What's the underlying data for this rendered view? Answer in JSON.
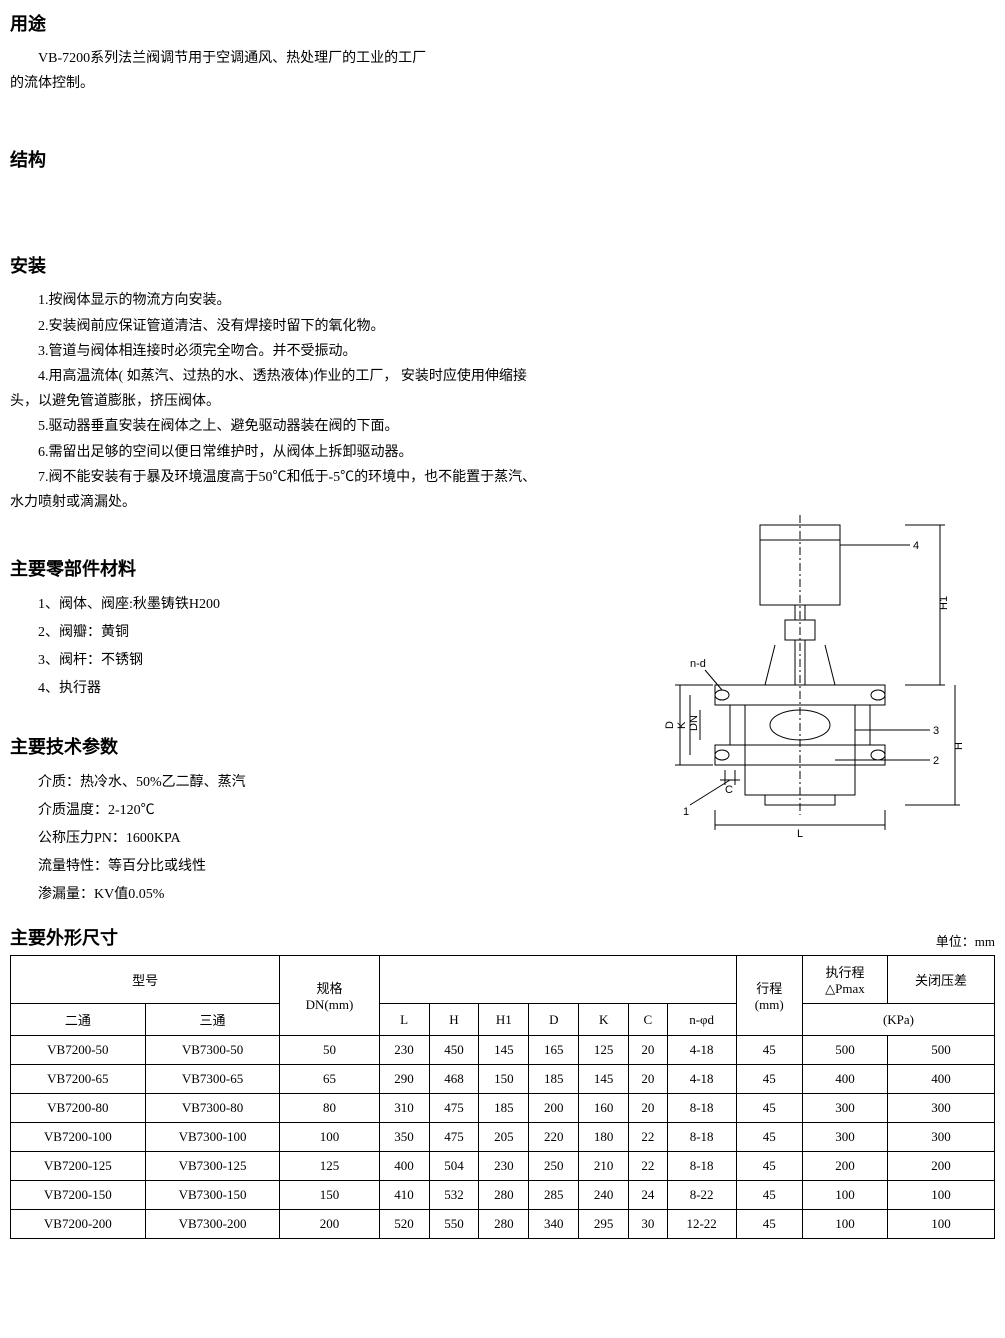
{
  "sections": {
    "usage": {
      "title": "用途",
      "line1": "VB-7200系列法兰阀调节用于空调通风、热处理厂的工业的工厂",
      "line2": "的流体控制。"
    },
    "structure": {
      "title": "结构"
    },
    "installation": {
      "title": "安装",
      "item1": "1.按阀体显示的物流方向安装。",
      "item2": "2.安装阀前应保证管道清洁、没有焊接时留下的氧化物。",
      "item3": "3.管道与阀体相连接时必须完全吻合。并不受振动。",
      "item4": "4.用高温流体( 如蒸汽、过热的水、透热液体)作业的工厂， 安装时应使用伸缩接",
      "item4b": "头，以避免管道膨胀，挤压阀体。",
      "item5": "5.驱动器垂直安装在阀体之上、避免驱动器装在阀的下面。",
      "item6": "6.需留出足够的空间以便日常维护时，从阀体上拆卸驱动器。",
      "item7": "7.阀不能安装有于暴及环境温度高于50℃和低于-5℃的环境中，也不能置于蒸汽、",
      "item7b": "水力喷射或滴漏处。"
    },
    "materials": {
      "title": "主要零部件材料",
      "item1": "1、阀体、阀座:秋墨铸铁H200",
      "item2": "2、阀瓣：黄铜",
      "item3": "3、阀杆：不锈钢",
      "item4": "4、执行器"
    },
    "techparams": {
      "title": "主要技术参数",
      "item1": "介质：热冷水、50%乙二醇、蒸汽",
      "item2": "介质温度：2-120℃",
      "item3": "公称压力PN：1600KPA",
      "item4": "流量特性：等百分比或线性",
      "item5": "渗漏量：KV值0.05%"
    },
    "dimensions": {
      "title": "主要外形尺寸",
      "unit_label": "单位：mm"
    }
  },
  "diagram": {
    "labels": {
      "n_d": "n-d",
      "D": "D",
      "K": "K",
      "DN": "DN",
      "C": "C",
      "L": "L",
      "H": "H",
      "H1": "H1",
      "num1": "1",
      "num2": "2",
      "num3": "3",
      "num4": "4"
    }
  },
  "table": {
    "headers": {
      "model": "型号",
      "two_way": "二通",
      "three_way": "三通",
      "spec": "规格\nDN(mm)",
      "L": "L",
      "H": "H",
      "H1": "H1",
      "D": "D",
      "K": "K",
      "C": "C",
      "n_phi_d": "n-φd",
      "stroke": "行程\n(mm)",
      "dpmax": "执行程\n△Pmax",
      "close_diff": "关闭压差",
      "kpa": "(KPa)"
    },
    "rows": [
      {
        "tw": "VB7200-50",
        "thw": "VB7300-50",
        "dn": "50",
        "L": "230",
        "H": "450",
        "H1": "145",
        "D": "165",
        "K": "125",
        "C": "20",
        "nd": "4-18",
        "stroke": "45",
        "dpmax": "500",
        "close": "500"
      },
      {
        "tw": "VB7200-65",
        "thw": "VB7300-65",
        "dn": "65",
        "L": "290",
        "H": "468",
        "H1": "150",
        "D": "185",
        "K": "145",
        "C": "20",
        "nd": "4-18",
        "stroke": "45",
        "dpmax": "400",
        "close": "400"
      },
      {
        "tw": "VB7200-80",
        "thw": "VB7300-80",
        "dn": "80",
        "L": "310",
        "H": "475",
        "H1": "185",
        "D": "200",
        "K": "160",
        "C": "20",
        "nd": "8-18",
        "stroke": "45",
        "dpmax": "300",
        "close": "300"
      },
      {
        "tw": "VB7200-100",
        "thw": "VB7300-100",
        "dn": "100",
        "L": "350",
        "H": "475",
        "H1": "205",
        "D": "220",
        "K": "180",
        "C": "22",
        "nd": "8-18",
        "stroke": "45",
        "dpmax": "300",
        "close": "300"
      },
      {
        "tw": "VB7200-125",
        "thw": "VB7300-125",
        "dn": "125",
        "L": "400",
        "H": "504",
        "H1": "230",
        "D": "250",
        "K": "210",
        "C": "22",
        "nd": "8-18",
        "stroke": "45",
        "dpmax": "200",
        "close": "200"
      },
      {
        "tw": "VB7200-150",
        "thw": "VB7300-150",
        "dn": "150",
        "L": "410",
        "H": "532",
        "H1": "280",
        "D": "285",
        "K": "240",
        "C": "24",
        "nd": "8-22",
        "stroke": "45",
        "dpmax": "100",
        "close": "100"
      },
      {
        "tw": "VB7200-200",
        "thw": "VB7300-200",
        "dn": "200",
        "L": "520",
        "H": "550",
        "H1": "280",
        "D": "340",
        "K": "295",
        "C": "30",
        "nd": "12-22",
        "stroke": "45",
        "dpmax": "100",
        "close": "100"
      }
    ]
  }
}
